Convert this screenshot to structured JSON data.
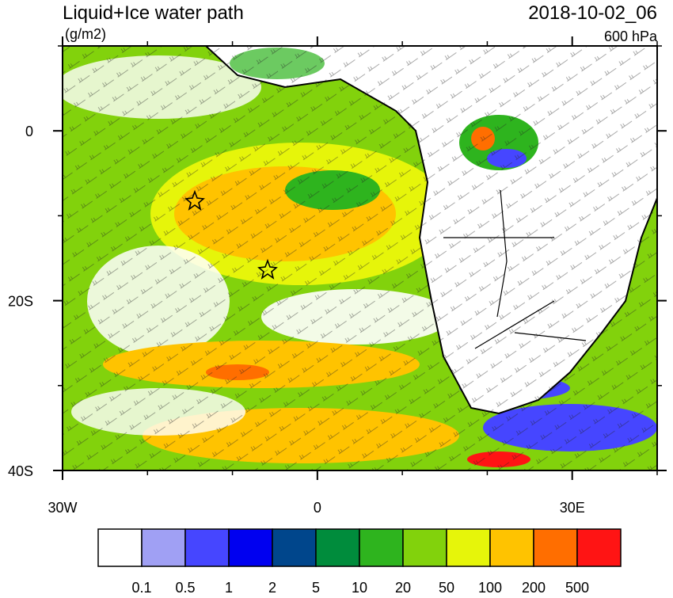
{
  "map": {
    "title": "Liquid+Ice water path",
    "units": "(g/m2)",
    "date": "2018-10-02_06",
    "level": "600 hPa",
    "lon_range": [
      -30,
      40
    ],
    "lat_range": [
      -40,
      10
    ],
    "lon_ticks": [
      {
        "value": -30,
        "label": "30W"
      },
      {
        "value": 0,
        "label": "0"
      },
      {
        "value": 30,
        "label": "30E"
      }
    ],
    "lat_ticks": [
      {
        "value": 0,
        "label": "0"
      },
      {
        "value": -20,
        "label": "20S"
      },
      {
        "value": -40,
        "label": "40S"
      }
    ],
    "minor_lon_ticks": [
      -20,
      -10,
      10,
      20,
      40
    ],
    "minor_lat_ticks": [
      10,
      -10,
      -30
    ],
    "colorbar": {
      "colors": [
        "#ffffff",
        "#a0a0f4",
        "#4646ff",
        "#0000f0",
        "#00468c",
        "#008c3c",
        "#2eb41e",
        "#82d20c",
        "#e6f50a",
        "#ffc300",
        "#ff6e00",
        "#ff1414"
      ],
      "labels": [
        "0.1",
        "0.5",
        "1",
        "2",
        "5",
        "10",
        "20",
        "50",
        "100",
        "200",
        "500"
      ]
    }
  }
}
